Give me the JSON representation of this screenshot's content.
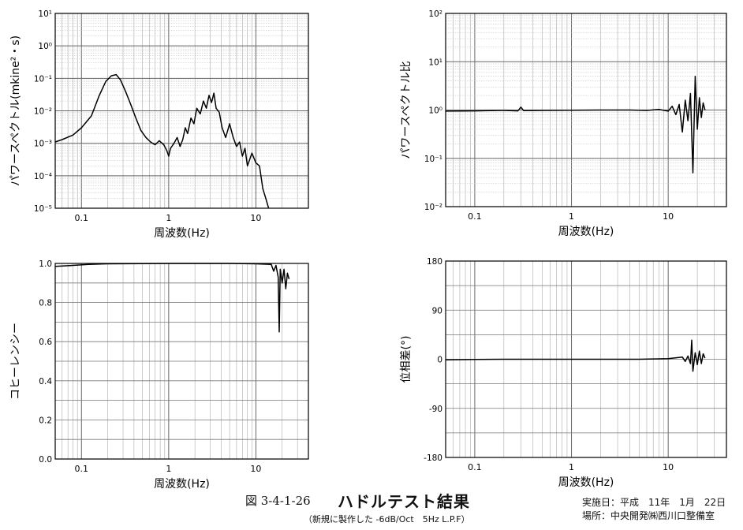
{
  "figure": {
    "label": "図 3-4-1-26",
    "title": "ハドルテスト結果",
    "subtitle": "（新規に製作した -6dB/Oct　5Hz L.P.F）",
    "meta_date": "実施日：平成　11年　1月　22日",
    "meta_place": "場所：中央開発㈱西川口整備室"
  },
  "chart_data": [
    {
      "id": "power-spectrum",
      "type": "line",
      "xscale": "log",
      "yscale": "log",
      "xlim": [
        0.05,
        40
      ],
      "ylim": [
        1e-05,
        10
      ],
      "grid": true,
      "xlabel": "周波数(Hz)",
      "ylabel": "パワースペクトル(mkine²・s)",
      "xticks": [
        {
          "v": 0.1,
          "label": "0.1"
        },
        {
          "v": 1,
          "label": "1"
        },
        {
          "v": 10,
          "label": "10"
        }
      ],
      "yticks": [
        {
          "v": 10,
          "label": "10¹"
        },
        {
          "v": 1,
          "label": "10⁰"
        },
        {
          "v": 0.1,
          "label": "10⁻¹"
        },
        {
          "v": 0.01,
          "label": "10⁻²"
        },
        {
          "v": 0.001,
          "label": "10⁻³"
        },
        {
          "v": 0.0001,
          "label": "10⁻⁴"
        },
        {
          "v": 1e-05,
          "label": "10⁻⁵"
        }
      ],
      "series": [
        {
          "x": [
            0.05,
            0.06,
            0.08,
            0.1,
            0.13,
            0.16,
            0.19,
            0.22,
            0.25,
            0.28,
            0.32,
            0.37,
            0.42,
            0.48,
            0.55,
            0.62,
            0.7,
            0.78,
            0.88,
            0.95,
            1.0,
            1.05,
            1.15,
            1.25,
            1.35,
            1.45,
            1.55,
            1.65,
            1.8,
            1.95,
            2.1,
            2.3,
            2.5,
            2.7,
            2.9,
            3.1,
            3.3,
            3.5,
            3.8,
            4.1,
            4.5,
            5.0,
            5.5,
            6.0,
            6.5,
            7.0,
            7.5,
            8.0,
            9.0,
            10.0,
            11.0,
            12.0,
            13.0,
            14.0
          ],
          "y": [
            0.0011,
            0.0013,
            0.0018,
            0.003,
            0.007,
            0.03,
            0.08,
            0.12,
            0.13,
            0.09,
            0.04,
            0.015,
            0.006,
            0.0025,
            0.0015,
            0.0011,
            0.0009,
            0.0012,
            0.0009,
            0.0006,
            0.0004,
            0.0007,
            0.001,
            0.0015,
            0.0008,
            0.0013,
            0.003,
            0.002,
            0.006,
            0.004,
            0.012,
            0.008,
            0.02,
            0.012,
            0.03,
            0.018,
            0.035,
            0.012,
            0.009,
            0.003,
            0.0015,
            0.004,
            0.0015,
            0.0008,
            0.0011,
            0.0004,
            0.0007,
            0.0002,
            0.0005,
            0.00025,
            0.0002,
            4e-05,
            2e-05,
            1e-05
          ]
        }
      ]
    },
    {
      "id": "power-ratio",
      "type": "line",
      "xscale": "log",
      "yscale": "log",
      "xlim": [
        0.05,
        40
      ],
      "ylim": [
        0.01,
        100
      ],
      "grid": true,
      "xlabel": "周波数(Hz)",
      "ylabel": "パワースペクトル比",
      "xticks": [
        {
          "v": 0.1,
          "label": "0.1"
        },
        {
          "v": 1,
          "label": "1"
        },
        {
          "v": 10,
          "label": "10"
        }
      ],
      "yticks": [
        {
          "v": 100,
          "label": "10²"
        },
        {
          "v": 10,
          "label": "10¹"
        },
        {
          "v": 1,
          "label": "10⁰"
        },
        {
          "v": 0.1,
          "label": "10⁻¹"
        },
        {
          "v": 0.01,
          "label": "10⁻²"
        }
      ],
      "series": [
        {
          "x": [
            0.05,
            0.1,
            0.2,
            0.28,
            0.3,
            0.32,
            0.5,
            1,
            2,
            4,
            6,
            8,
            10,
            11,
            12,
            13,
            14,
            15,
            16,
            17,
            18,
            19,
            20,
            21,
            22,
            23,
            24
          ],
          "y": [
            0.95,
            0.96,
            0.98,
            0.96,
            1.15,
            0.97,
            0.98,
            0.99,
            1.0,
            1.0,
            0.98,
            1.03,
            0.95,
            1.2,
            0.8,
            1.3,
            0.35,
            1.6,
            0.6,
            2.2,
            0.05,
            5.0,
            0.4,
            1.8,
            0.7,
            1.4,
            1.0
          ]
        }
      ]
    },
    {
      "id": "coherence",
      "type": "line",
      "xscale": "log",
      "yscale": "linear",
      "xlim": [
        0.05,
        40
      ],
      "ylim": [
        0.0,
        1.0
      ],
      "grid": true,
      "xlabel": "周波数(Hz)",
      "ylabel": "コヒーレンシー",
      "xticks": [
        {
          "v": 0.1,
          "label": "0.1"
        },
        {
          "v": 1,
          "label": "1"
        },
        {
          "v": 10,
          "label": "10"
        }
      ],
      "yticks": [
        {
          "v": 1.0,
          "label": "1.0"
        },
        {
          "v": 0.8,
          "label": "0.8"
        },
        {
          "v": 0.6,
          "label": "0.6"
        },
        {
          "v": 0.4,
          "label": "0.4"
        },
        {
          "v": 0.2,
          "label": "0.2"
        },
        {
          "v": 0.0,
          "label": "0.0"
        }
      ],
      "series": [
        {
          "x": [
            0.05,
            0.08,
            0.12,
            0.2,
            0.5,
            1,
            2,
            5,
            10,
            15,
            16,
            17,
            18,
            18.5,
            19,
            20,
            21,
            22,
            23,
            24
          ],
          "y": [
            0.985,
            0.99,
            0.995,
            0.998,
            0.999,
            1.0,
            1.0,
            1.0,
            0.998,
            0.995,
            0.96,
            0.99,
            0.93,
            0.65,
            0.97,
            0.9,
            0.97,
            0.87,
            0.95,
            0.92
          ]
        }
      ]
    },
    {
      "id": "phase",
      "type": "line",
      "xscale": "log",
      "yscale": "linear",
      "xlim": [
        0.05,
        40
      ],
      "ylim": [
        -180,
        180
      ],
      "grid": true,
      "xlabel": "周波数(Hz)",
      "ylabel": "位相差(°)",
      "xticks": [
        {
          "v": 0.1,
          "label": "0.1"
        },
        {
          "v": 1,
          "label": "1"
        },
        {
          "v": 10,
          "label": "10"
        }
      ],
      "yticks": [
        {
          "v": 180,
          "label": "180"
        },
        {
          "v": 90,
          "label": "90"
        },
        {
          "v": 0,
          "label": "0"
        },
        {
          "v": -90,
          "label": "-90"
        },
        {
          "v": -180,
          "label": "-180"
        }
      ],
      "series": [
        {
          "x": [
            0.05,
            0.1,
            0.2,
            0.5,
            1,
            2,
            5,
            10,
            14,
            15,
            16,
            17,
            17.5,
            18,
            19,
            20,
            21,
            22,
            23,
            24
          ],
          "y": [
            -1,
            -0.5,
            0,
            0,
            0,
            0,
            0,
            1,
            4,
            -4,
            6,
            -8,
            35,
            -22,
            12,
            -10,
            15,
            -8,
            10,
            2
          ]
        }
      ]
    }
  ]
}
